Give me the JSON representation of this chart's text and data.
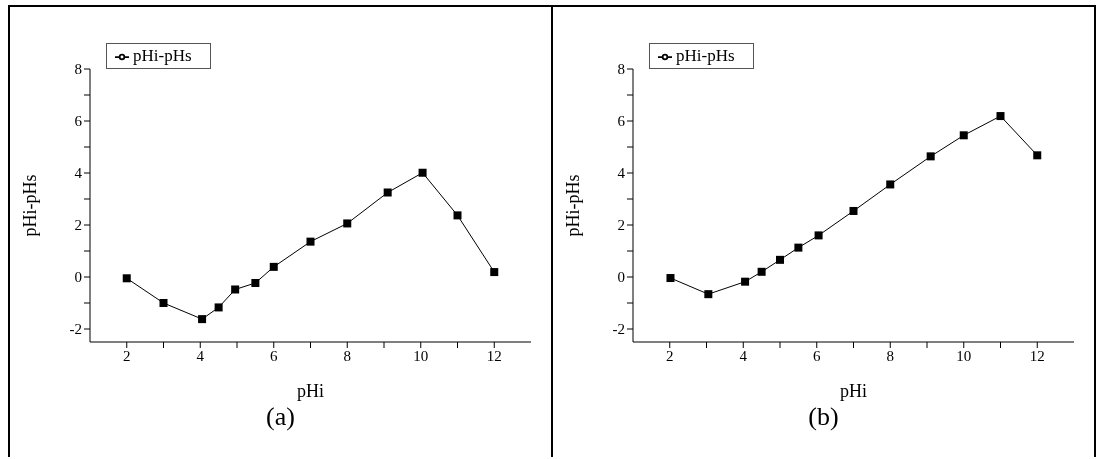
{
  "chart_data": [
    {
      "type": "line",
      "xlabel": "pHi",
      "ylabel": "pHi-pHs",
      "annotations": [
        "(a)"
      ],
      "xlim": [
        1,
        13
      ],
      "ylim": [
        -2.5,
        8
      ],
      "xticks": [
        2,
        {
          "value": 3,
          "label": null
        },
        4,
        {
          "value": 5,
          "label": null
        },
        6,
        {
          "value": 7,
          "label": null
        },
        8,
        {
          "value": 9,
          "label": null
        },
        10,
        {
          "value": 11,
          "label": null
        },
        12
      ],
      "yticks": [
        -2,
        {
          "value": -1,
          "label": null
        },
        0,
        {
          "value": 1,
          "label": null
        },
        2,
        {
          "value": 3,
          "label": null
        },
        4,
        {
          "value": 5,
          "label": null
        },
        6,
        {
          "value": 7,
          "label": null
        },
        8
      ],
      "grid": false,
      "legend": "top left",
      "marker": "square",
      "line_style": "solid",
      "series": [
        {
          "name": "pHi-pHs",
          "color": "#000000",
          "x": [
            2,
            3,
            4.05,
            4.5,
            4.95,
            5.5,
            6,
            7,
            8,
            9.1,
            10.05,
            11,
            12
          ],
          "values": [
            -0.05,
            -1.0,
            -1.62,
            -1.17,
            -0.48,
            -0.23,
            0.39,
            1.36,
            2.06,
            3.25,
            4.01,
            2.37,
            0.19
          ]
        }
      ]
    },
    {
      "type": "line",
      "xlabel": "pHi",
      "ylabel": "pHi-pHs",
      "annotations": [
        "(b)"
      ],
      "xlim": [
        1,
        13
      ],
      "ylim": [
        -2.5,
        8
      ],
      "xticks": [
        2,
        {
          "value": 3,
          "label": null
        },
        4,
        {
          "value": 5,
          "label": null
        },
        6,
        {
          "value": 7,
          "label": null
        },
        8,
        {
          "value": 9,
          "label": null
        },
        10,
        {
          "value": 11,
          "label": null
        },
        12
      ],
      "yticks": [
        -2,
        {
          "value": -1,
          "label": null
        },
        0,
        {
          "value": 1,
          "label": null
        },
        2,
        {
          "value": 3,
          "label": null
        },
        4,
        {
          "value": 5,
          "label": null
        },
        6,
        {
          "value": 7,
          "label": null
        },
        8
      ],
      "grid": false,
      "legend": "top left",
      "marker": "square",
      "line_style": "solid",
      "series": [
        {
          "name": "pHi-pHs",
          "color": "#000000",
          "x": [
            2.02,
            3.05,
            4.05,
            4.5,
            5,
            5.5,
            6.05,
            7,
            8,
            9.1,
            10,
            11,
            12
          ],
          "values": [
            -0.04,
            -0.66,
            -0.18,
            0.2,
            0.66,
            1.13,
            1.6,
            2.54,
            3.56,
            4.64,
            5.45,
            6.19,
            4.68
          ]
        }
      ]
    }
  ]
}
